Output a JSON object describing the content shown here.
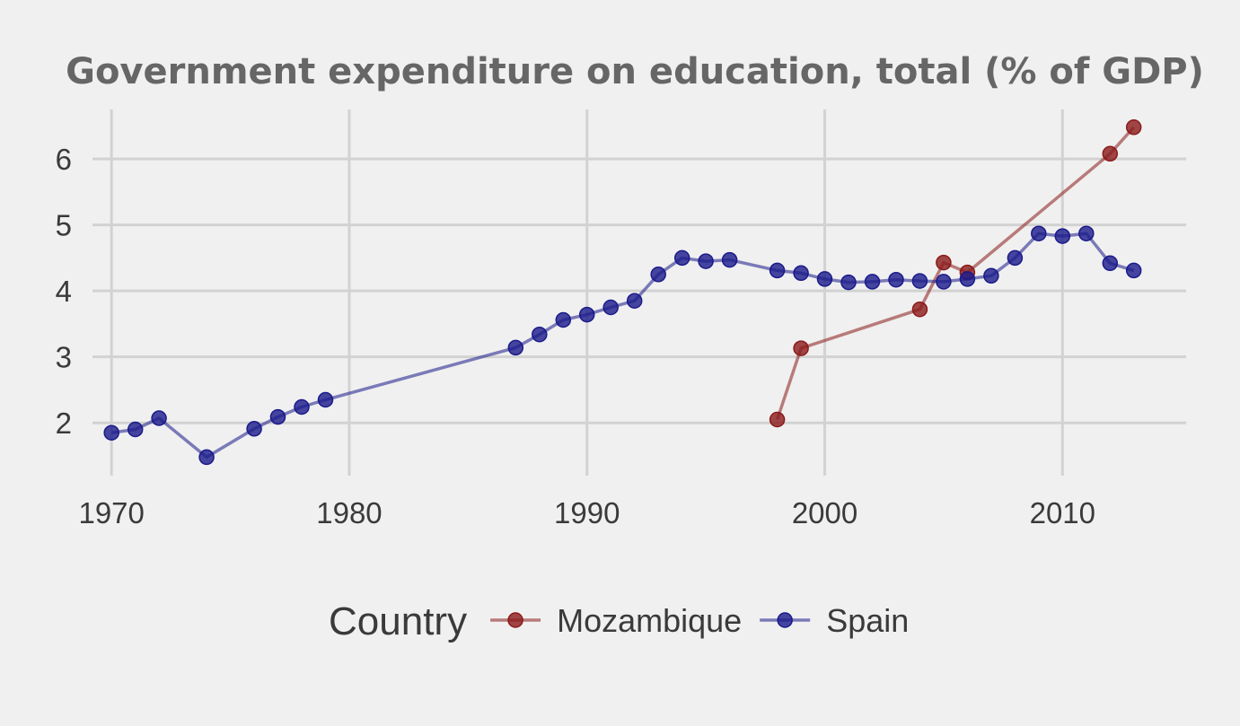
{
  "chart_data": {
    "type": "line",
    "title": "Government expenditure on education, total (% of GDP)",
    "xlabel": "",
    "ylabel": "",
    "xlim": [
      1969.2,
      2015.2
    ],
    "ylim": [
      1.2,
      6.75
    ],
    "x_ticks": [
      1970,
      1980,
      1990,
      2000,
      2010
    ],
    "y_ticks": [
      2,
      3,
      4,
      5,
      6
    ],
    "grid": true,
    "legend": {
      "title": "Country",
      "position": "bottom"
    },
    "series": [
      {
        "name": "Mozambique",
        "color": "#8b1a1a",
        "points": [
          [
            1998,
            2.05
          ],
          [
            1999,
            3.13
          ],
          [
            2004,
            3.72
          ],
          [
            2005,
            4.43
          ],
          [
            2006,
            4.28
          ],
          [
            2012,
            6.08
          ],
          [
            2013,
            6.48
          ]
        ]
      },
      {
        "name": "Spain",
        "color": "#1a1a8b",
        "points": [
          [
            1970,
            1.85
          ],
          [
            1971,
            1.9
          ],
          [
            1972,
            2.07
          ],
          [
            1974,
            1.48
          ],
          [
            1976,
            1.91
          ],
          [
            1977,
            2.09
          ],
          [
            1978,
            2.24
          ],
          [
            1979,
            2.35
          ],
          [
            1987,
            3.14
          ],
          [
            1988,
            3.34
          ],
          [
            1989,
            3.56
          ],
          [
            1990,
            3.64
          ],
          [
            1991,
            3.75
          ],
          [
            1992,
            3.85
          ],
          [
            1993,
            4.25
          ],
          [
            1994,
            4.5
          ],
          [
            1995,
            4.45
          ],
          [
            1996,
            4.47
          ],
          [
            1998,
            4.31
          ],
          [
            1999,
            4.27
          ],
          [
            2000,
            4.18
          ],
          [
            2001,
            4.13
          ],
          [
            2002,
            4.14
          ],
          [
            2003,
            4.17
          ],
          [
            2004,
            4.15
          ],
          [
            2005,
            4.14
          ],
          [
            2006,
            4.18
          ],
          [
            2007,
            4.23
          ],
          [
            2008,
            4.5
          ],
          [
            2009,
            4.87
          ],
          [
            2010,
            4.83
          ],
          [
            2011,
            4.87
          ],
          [
            2012,
            4.42
          ],
          [
            2013,
            4.31
          ]
        ]
      }
    ]
  }
}
